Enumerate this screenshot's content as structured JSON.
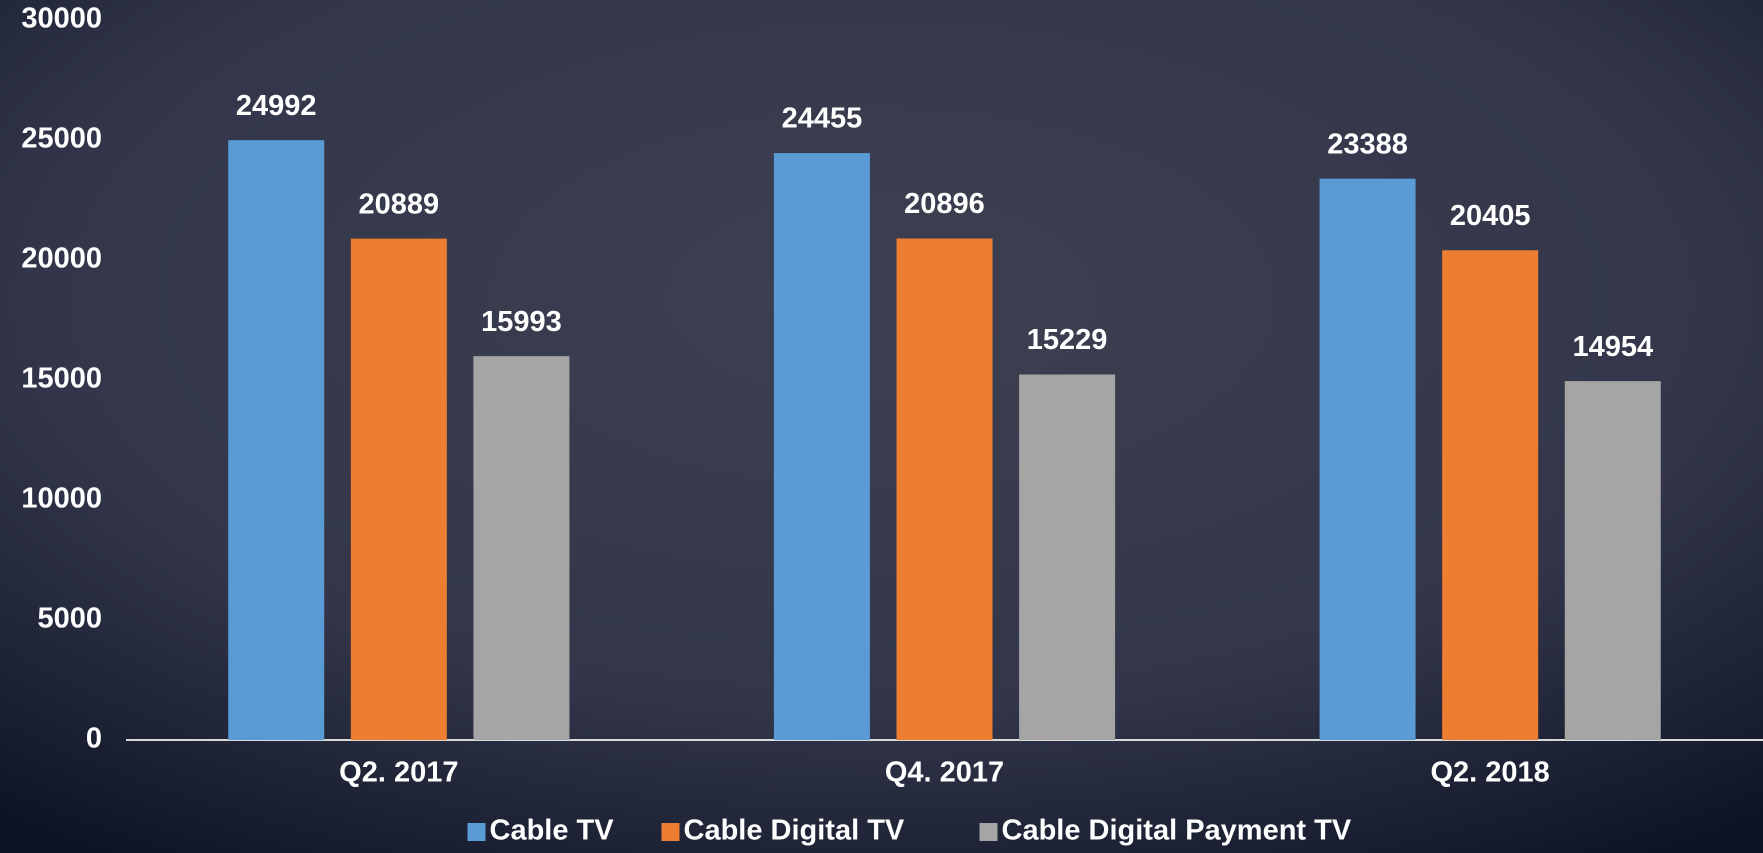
{
  "chart_data": {
    "type": "bar",
    "categories": [
      "Q2. 2017",
      "Q4. 2017",
      "Q2. 2018"
    ],
    "series": [
      {
        "name": "Cable TV",
        "color": "#5b9bd5",
        "values": [
          24992,
          24455,
          23388
        ]
      },
      {
        "name": "Cable Digital TV",
        "color": "#ed7d31",
        "values": [
          20889,
          20896,
          20405
        ]
      },
      {
        "name": "Cable Digital Payment TV",
        "color": "#a5a5a5",
        "values": [
          15993,
          15229,
          14954
        ]
      }
    ],
    "ylim": [
      0,
      30000
    ],
    "yticks": [
      0,
      5000,
      10000,
      15000,
      20000,
      25000,
      30000
    ],
    "legend": "bottom"
  }
}
